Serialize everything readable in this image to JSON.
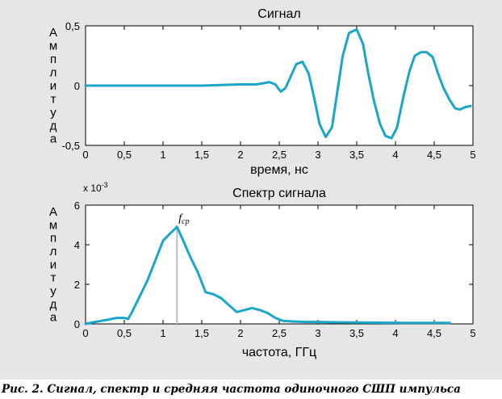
{
  "caption": "Рис. 2. Сигнал, спектр и средняя частота одиночного СШП импульса",
  "line_color": "#1aa6c8",
  "chart_data": [
    {
      "type": "line",
      "title": "Сигнал",
      "xlabel": "время, нс",
      "ylabel": "Амплитуда",
      "xlim": [
        0,
        5
      ],
      "ylim": [
        -0.5,
        0.5
      ],
      "xticks": [
        "0",
        "0,5",
        "1",
        "1,5",
        "2",
        "2,5",
        "3",
        "3,5",
        "4",
        "4,5",
        "5"
      ],
      "yticks": [
        "-0,5",
        "0",
        "0,5"
      ],
      "grid": false,
      "series": [
        {
          "x": [
            0,
            0.5,
            1.0,
            1.5,
            2.0,
            2.2,
            2.3,
            2.37,
            2.45,
            2.52,
            2.58,
            2.65,
            2.72,
            2.8,
            2.88,
            2.95,
            3.02,
            3.1,
            3.18,
            3.25,
            3.32,
            3.4,
            3.5,
            3.58,
            3.65,
            3.72,
            3.8,
            3.87,
            3.95,
            4.02,
            4.1,
            4.18,
            4.25,
            4.33,
            4.4,
            4.48,
            4.55,
            4.62,
            4.7,
            4.77,
            4.83,
            4.9,
            4.97
          ],
          "y": [
            0,
            0,
            0,
            0,
            0.01,
            0.01,
            0.02,
            0.03,
            0.01,
            -0.05,
            -0.02,
            0.08,
            0.18,
            0.2,
            0.1,
            -0.1,
            -0.32,
            -0.43,
            -0.35,
            -0.05,
            0.25,
            0.44,
            0.47,
            0.35,
            0.1,
            -0.12,
            -0.32,
            -0.42,
            -0.44,
            -0.35,
            -0.1,
            0.12,
            0.25,
            0.28,
            0.28,
            0.24,
            0.1,
            -0.02,
            -0.12,
            -0.19,
            -0.2,
            -0.18,
            -0.17
          ]
        }
      ]
    },
    {
      "type": "line",
      "title": "Спектр сигнала",
      "xlabel": "частота, ГГц",
      "ylabel": "Амплитуда",
      "y_multiplier": "x 10",
      "y_exponent": "-3",
      "xlim": [
        0,
        5
      ],
      "ylim": [
        0,
        6
      ],
      "xticks": [
        "0",
        "0,5",
        "1",
        "1,5",
        "2",
        "2,5",
        "3",
        "3,5",
        "4",
        "4,5",
        "5"
      ],
      "yticks": [
        "0",
        "2",
        "4",
        "6"
      ],
      "grid": false,
      "annotation": {
        "label": "f",
        "subscript": "cp",
        "x": 1.18
      },
      "series": [
        {
          "x": [
            0,
            0.1,
            0.2,
            0.3,
            0.4,
            0.5,
            0.55,
            0.6,
            0.7,
            0.8,
            0.9,
            1.0,
            1.1,
            1.18,
            1.25,
            1.35,
            1.45,
            1.55,
            1.65,
            1.75,
            1.85,
            1.95,
            2.05,
            2.15,
            2.25,
            2.35,
            2.45,
            2.55,
            2.7,
            2.85,
            3.0,
            3.2,
            3.5,
            3.8,
            4.1,
            4.4,
            4.7
          ],
          "y": [
            0,
            0.08,
            0.15,
            0.22,
            0.3,
            0.3,
            0.25,
            0.6,
            1.4,
            2.2,
            3.2,
            4.2,
            4.6,
            4.9,
            4.3,
            3.4,
            2.6,
            1.6,
            1.5,
            1.3,
            0.95,
            0.6,
            0.7,
            0.8,
            0.7,
            0.55,
            0.3,
            0.15,
            0.12,
            0.1,
            0.1,
            0.08,
            0.07,
            0.06,
            0.05,
            0.05,
            0.05
          ]
        }
      ]
    }
  ]
}
